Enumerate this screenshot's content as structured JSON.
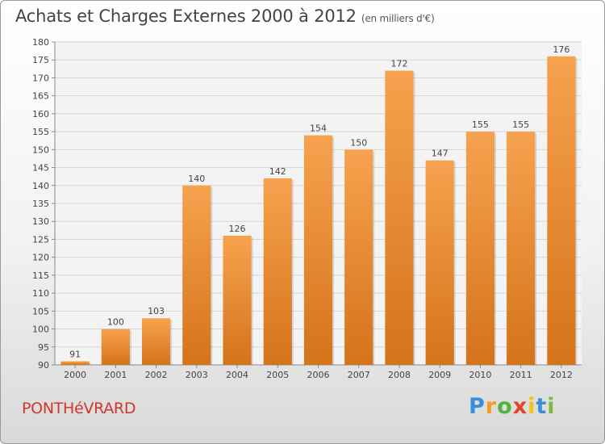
{
  "chart_data": {
    "type": "bar",
    "title": "Achats et Charges Externes 2000 à 2012",
    "subtitle": "(en milliers d'€)",
    "categories": [
      "2000",
      "2001",
      "2002",
      "2003",
      "2004",
      "2005",
      "2006",
      "2007",
      "2008",
      "2009",
      "2010",
      "2011",
      "2012"
    ],
    "values": [
      91,
      100,
      103,
      140,
      126,
      142,
      154,
      150,
      172,
      147,
      155,
      155,
      176
    ],
    "ylim": [
      90,
      180
    ],
    "ytick_step": 5,
    "grid": true,
    "bar_color_top": "#f7a24f",
    "bar_color_bottom": "#d4731a"
  },
  "footer": {
    "commune": "PONTHéVRARD",
    "logo": {
      "letters": [
        "P",
        "r",
        "o",
        "x",
        "i",
        "t",
        "i"
      ],
      "colors": [
        "#3a8fd6",
        "#f39c1f",
        "#4fb53c",
        "#e2432a",
        "#f0c419",
        "#3a8fd6",
        "#7dbb3e"
      ]
    }
  }
}
